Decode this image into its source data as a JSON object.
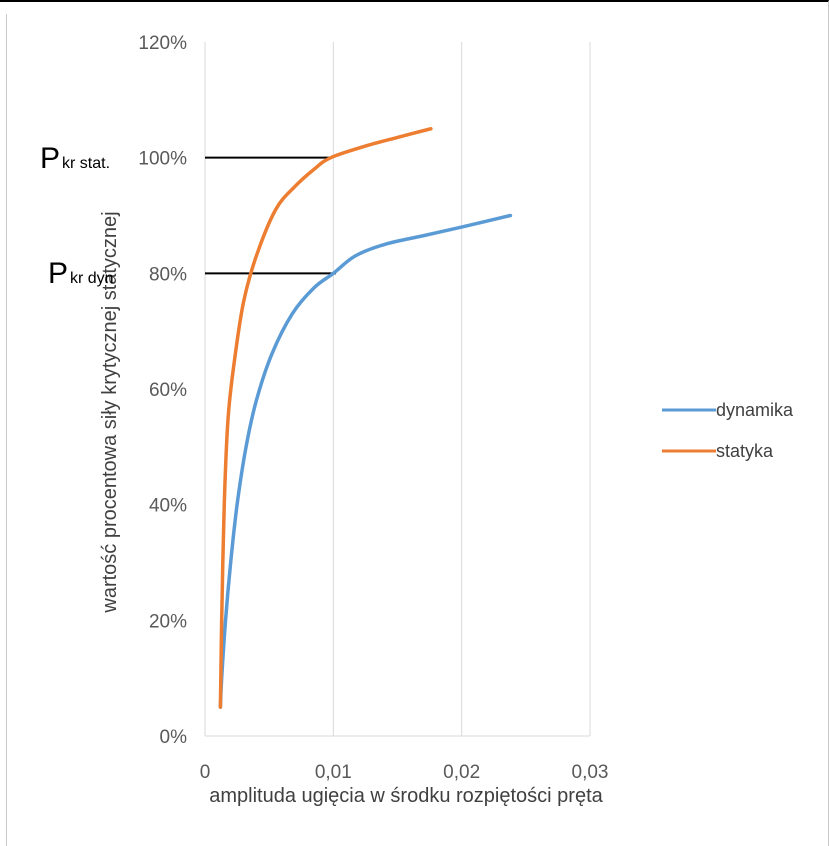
{
  "chart_data": {
    "type": "line",
    "xlabel": "amplituda ugięcia w środku rozpiętości pręta",
    "ylabel": "wartość procentowa siły krytycznej statycznej",
    "xlim": [
      0,
      0.03
    ],
    "ylim": [
      0,
      1.2
    ],
    "x_ticks": [
      "0",
      "0,01",
      "0,02",
      "0,03"
    ],
    "y_ticks": [
      "0%",
      "20%",
      "40%",
      "60%",
      "80%",
      "100%",
      "120%"
    ],
    "grid": "vertical",
    "legend_position": "right",
    "series": [
      {
        "name": "dynamika",
        "color": "#5b9bd5",
        "points": [
          [
            0.0012,
            0.05
          ],
          [
            0.0013,
            0.1
          ],
          [
            0.0016,
            0.2
          ],
          [
            0.002,
            0.3
          ],
          [
            0.0025,
            0.4
          ],
          [
            0.0032,
            0.5
          ],
          [
            0.004,
            0.58
          ],
          [
            0.0052,
            0.66
          ],
          [
            0.0068,
            0.73
          ],
          [
            0.0085,
            0.775
          ],
          [
            0.01,
            0.8
          ],
          [
            0.0117,
            0.83
          ],
          [
            0.014,
            0.85
          ],
          [
            0.017,
            0.865
          ],
          [
            0.02,
            0.88
          ],
          [
            0.0238,
            0.9
          ]
        ]
      },
      {
        "name": "statyka",
        "color": "#ed7d31",
        "points": [
          [
            0.0012,
            0.05
          ],
          [
            0.0013,
            0.2
          ],
          [
            0.0015,
            0.4
          ],
          [
            0.0018,
            0.55
          ],
          [
            0.0023,
            0.65
          ],
          [
            0.003,
            0.75
          ],
          [
            0.004,
            0.83
          ],
          [
            0.0055,
            0.91
          ],
          [
            0.007,
            0.95
          ],
          [
            0.0085,
            0.98
          ],
          [
            0.0098,
            1.0
          ],
          [
            0.0125,
            1.02
          ],
          [
            0.015,
            1.035
          ],
          [
            0.0176,
            1.05
          ]
        ]
      }
    ],
    "reference_lines": [
      {
        "y": 1.0,
        "x_start": 0,
        "x_end": 0.0098,
        "color": "#000000"
      },
      {
        "y": 0.8,
        "x_start": 0,
        "x_end": 0.0102,
        "color": "#000000"
      }
    ],
    "annotations": [
      {
        "main": "P",
        "sub": "kr stat.",
        "y": 1.0
      },
      {
        "main": "P",
        "sub": "kr dyn",
        "y": 0.8
      }
    ]
  }
}
